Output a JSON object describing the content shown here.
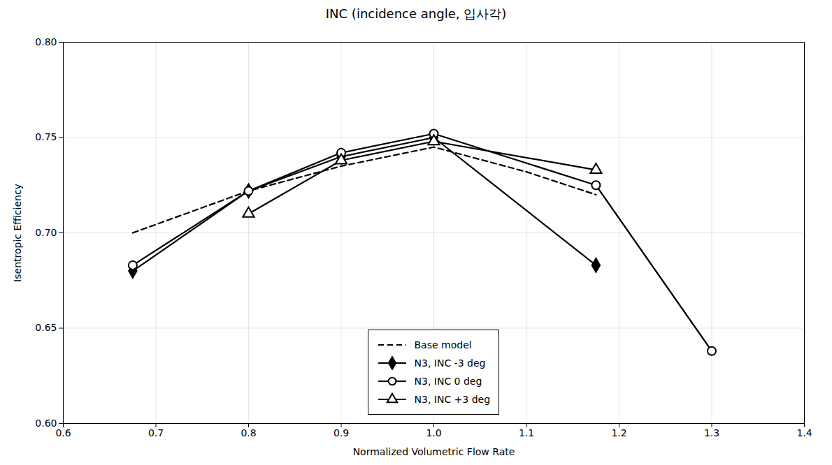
{
  "chart_data": {
    "type": "line",
    "title": "INC  (incidence  angle,  입사각)",
    "xlabel": "Normalized Volumetric Flow Rate",
    "ylabel": "Isentropic Efficiency",
    "xlim": [
      0.6,
      1.4
    ],
    "ylim": [
      0.6,
      0.8
    ],
    "xticks": [
      0.6,
      0.7,
      0.8,
      0.9,
      {
        "value": 1.0,
        "label": "1.0"
      },
      1.1,
      1.2,
      1.3,
      1.4
    ],
    "yticks": [
      {
        "value": 0.6,
        "label": "0.60"
      },
      0.65,
      {
        "value": 0.7,
        "label": "0.70"
      },
      0.75,
      {
        "value": 0.8,
        "label": "0.80"
      }
    ],
    "grid": true,
    "legend": "lower center",
    "series": [
      {
        "name": "Base model",
        "color": "#000000",
        "line_style": "dashed",
        "marker": "none",
        "x": [
          0.675,
          0.8,
          0.9,
          1.0,
          1.1,
          1.175
        ],
        "values": [
          0.7,
          0.722,
          0.735,
          0.745,
          0.732,
          0.72
        ]
      },
      {
        "name": "N3, INC -3 deg",
        "color": "#000000",
        "line_style": "solid",
        "marker": "diamond",
        "x": [
          0.675,
          0.8,
          0.9,
          1.0,
          1.175
        ],
        "values": [
          0.68,
          0.722,
          0.74,
          0.75,
          0.683
        ]
      },
      {
        "name": "N3, INC  0 deg",
        "color": "#000000",
        "line_style": "solid",
        "marker": "circle",
        "x": [
          0.675,
          0.8,
          0.9,
          1.0,
          1.175,
          1.3
        ],
        "values": [
          0.683,
          0.722,
          0.742,
          0.752,
          0.725,
          0.638
        ]
      },
      {
        "name": "N3, INC +3 deg",
        "color": "#000000",
        "line_style": "solid",
        "marker": "triangle",
        "x": [
          0.8,
          0.9,
          1.0,
          1.175
        ],
        "values": [
          0.71,
          0.738,
          0.748,
          0.733
        ]
      }
    ]
  }
}
